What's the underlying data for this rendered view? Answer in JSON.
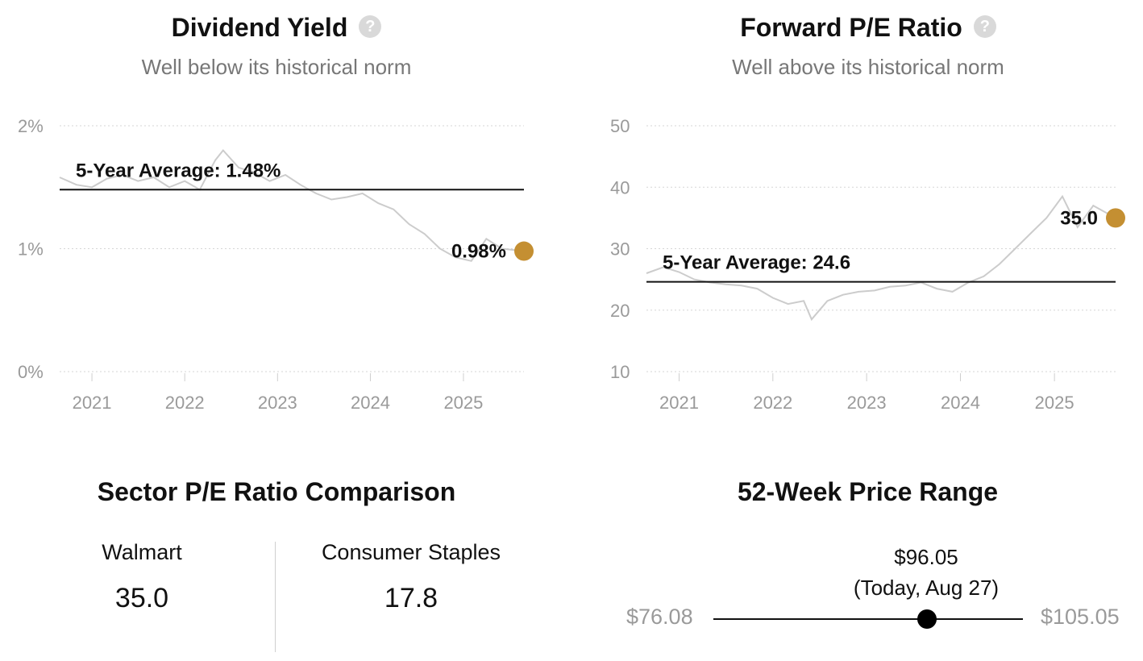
{
  "colors": {
    "accent": "#c48f32",
    "series": "#cccccc",
    "grid": "#d6d6d6"
  },
  "dividend": {
    "title": "Dividend Yield",
    "subtitle": "Well below its historical norm",
    "help_icon": "question-circle-icon",
    "average_label": "5-Year Average: 1.48%",
    "current_label": "0.98%"
  },
  "pe": {
    "title": "Forward P/E Ratio",
    "subtitle": "Well above its historical norm",
    "help_icon": "question-circle-icon",
    "average_label": "5-Year Average: 24.6",
    "current_label": "35.0"
  },
  "sector": {
    "title": "Sector P/E Ratio Comparison",
    "left_name": "Walmart",
    "left_value": "35.0",
    "right_name": "Consumer Staples",
    "right_value": "17.8"
  },
  "range": {
    "title": "52-Week Price Range",
    "current_price": "$96.05",
    "current_note": "(Today, Aug 27)",
    "low": "$76.08",
    "high": "$105.05",
    "low_value": 76.08,
    "high_value": 105.05,
    "current_value": 96.05
  },
  "chart_data": [
    {
      "type": "line",
      "title": "Dividend Yield",
      "subtitle": "Well below its historical norm",
      "x_ticks": [
        "2021",
        "2022",
        "2023",
        "2024",
        "2025"
      ],
      "y_ticks": [
        "0%",
        "1%",
        "2%"
      ],
      "ylim": [
        0,
        2
      ],
      "xlim": [
        "2020-08-27",
        "2025-08-27"
      ],
      "grid": true,
      "average": 1.48,
      "current": 0.98,
      "series": [
        {
          "x": [
            "2020-08-27",
            "2020-11-01",
            "2021-01-01",
            "2021-03-01",
            "2021-05-01",
            "2021-07-01",
            "2021-09-01",
            "2021-11-01",
            "2022-01-01",
            "2022-03-01",
            "2022-05-01",
            "2022-06-01",
            "2022-08-01",
            "2022-10-01",
            "2022-12-01",
            "2023-02-01",
            "2023-04-01",
            "2023-06-01",
            "2023-08-01",
            "2023-10-01",
            "2023-12-01",
            "2024-02-01",
            "2024-04-01",
            "2024-06-01",
            "2024-08-01",
            "2024-10-01",
            "2024-12-01",
            "2025-02-01",
            "2025-04-01",
            "2025-06-01",
            "2025-08-27"
          ],
          "values": [
            1.58,
            1.52,
            1.5,
            1.57,
            1.6,
            1.55,
            1.58,
            1.5,
            1.55,
            1.48,
            1.72,
            1.8,
            1.66,
            1.62,
            1.55,
            1.6,
            1.52,
            1.45,
            1.4,
            1.42,
            1.45,
            1.37,
            1.32,
            1.2,
            1.12,
            1.0,
            0.93,
            0.9,
            1.08,
            1.0,
            0.98
          ]
        }
      ]
    },
    {
      "type": "line",
      "title": "Forward P/E Ratio",
      "subtitle": "Well above its historical norm",
      "x_ticks": [
        "2021",
        "2022",
        "2023",
        "2024",
        "2025"
      ],
      "y_ticks": [
        "10",
        "20",
        "30",
        "40",
        "50"
      ],
      "ylim": [
        10,
        50
      ],
      "xlim": [
        "2020-08-27",
        "2025-08-27"
      ],
      "grid": true,
      "average": 24.6,
      "current": 35.0,
      "series": [
        {
          "x": [
            "2020-08-27",
            "2020-11-01",
            "2021-01-01",
            "2021-03-01",
            "2021-05-01",
            "2021-07-01",
            "2021-09-01",
            "2021-11-01",
            "2022-01-01",
            "2022-03-01",
            "2022-05-01",
            "2022-06-01",
            "2022-08-01",
            "2022-10-01",
            "2022-12-01",
            "2023-02-01",
            "2023-04-01",
            "2023-06-01",
            "2023-08-01",
            "2023-10-01",
            "2023-12-01",
            "2024-02-01",
            "2024-04-01",
            "2024-06-01",
            "2024-08-01",
            "2024-10-01",
            "2024-12-01",
            "2025-02-01",
            "2025-04-01",
            "2025-06-01",
            "2025-08-27"
          ],
          "values": [
            26.0,
            27.0,
            26.2,
            25.0,
            24.5,
            24.2,
            24.0,
            23.5,
            22.0,
            21.0,
            21.5,
            18.5,
            21.5,
            22.5,
            23.0,
            23.2,
            23.8,
            24.0,
            24.5,
            23.5,
            23.0,
            24.5,
            25.5,
            27.5,
            30.0,
            32.5,
            35.0,
            38.5,
            33.5,
            37.0,
            35.0
          ]
        }
      ]
    }
  ]
}
